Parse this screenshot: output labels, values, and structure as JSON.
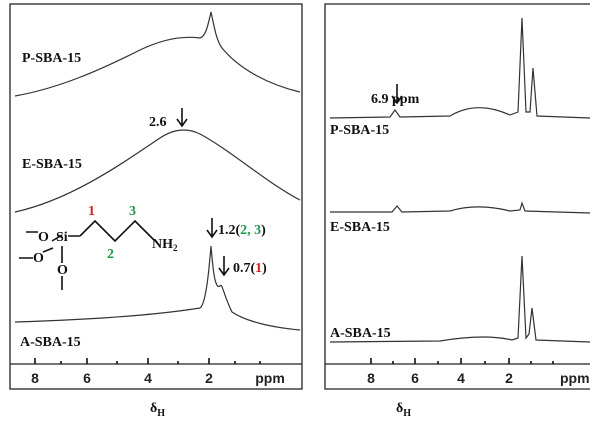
{
  "panels": [
    {
      "spectra": [
        {
          "label": "P-SBA-15"
        },
        {
          "label": "E-SBA-15"
        },
        {
          "label": "A-SBA-15"
        }
      ],
      "annotations": [
        {
          "text": "2.6"
        },
        {
          "parts": [
            "1.2(",
            "2, 3",
            ")"
          ]
        },
        {
          "parts": [
            "0.7(",
            "1",
            ")"
          ]
        }
      ],
      "structure": {
        "atoms": [
          "O",
          "Si",
          "O",
          "O"
        ],
        "amine": "NH",
        "amine_subscript": "2",
        "carbons": [
          "1",
          "2",
          "3"
        ]
      },
      "xticks": [
        "8",
        "6",
        "4",
        "2",
        "ppm"
      ],
      "x_label": {
        "symbol": "δ",
        "subscript": "H"
      }
    },
    {
      "spectra": [
        {
          "label": "P-SBA-15"
        },
        {
          "label": "E-SBA-15"
        },
        {
          "label": "A-SBA-15"
        }
      ],
      "annotations": [
        {
          "text": "6.9 ppm"
        }
      ],
      "xticks": [
        "8",
        "6",
        "4",
        "2",
        "ppm"
      ],
      "x_label": {
        "symbol": "δ",
        "subscript": "H"
      }
    }
  ]
}
